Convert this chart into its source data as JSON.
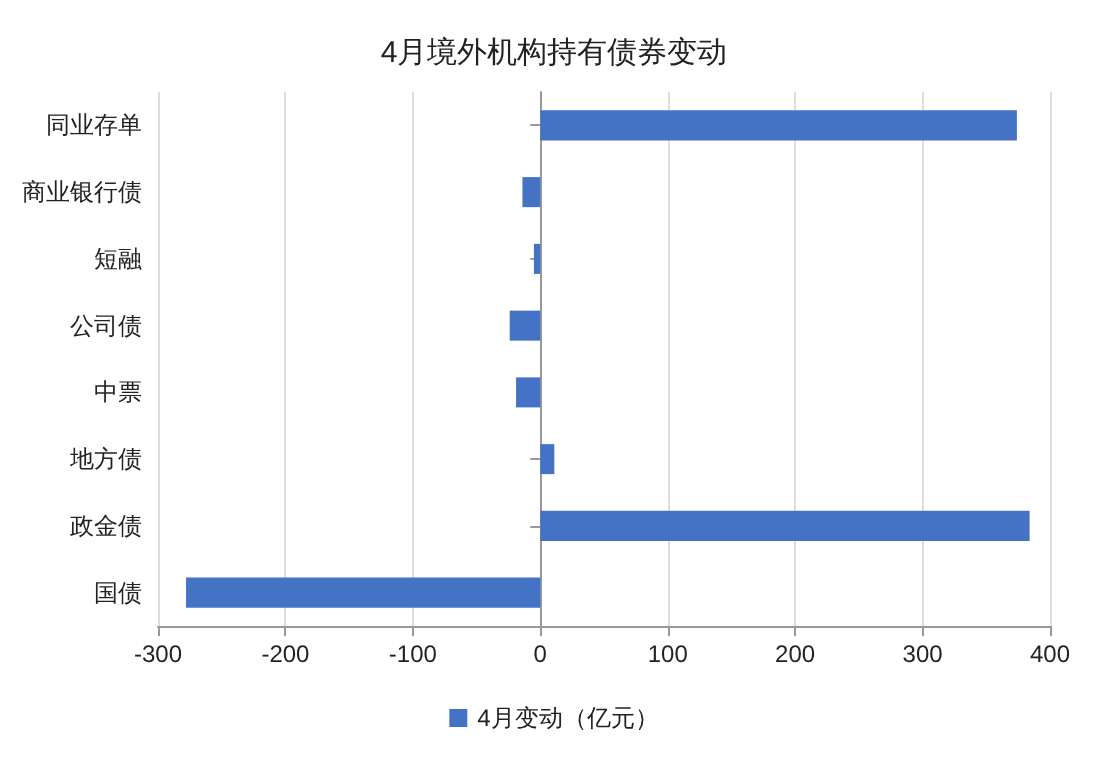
{
  "chart_data": {
    "type": "bar",
    "orientation": "horizontal",
    "title": "4月境外机构持有债券变动",
    "categories": [
      "同业存单",
      "商业银行债",
      "短融",
      "公司债",
      "中票",
      "地方债",
      "政金债",
      "国债"
    ],
    "series": [
      {
        "name": "4月变动（亿元）",
        "color": "#4472c4",
        "values": [
          374,
          -14,
          -5,
          -24,
          -19,
          11,
          384,
          -278
        ]
      }
    ],
    "xlim": [
      -300,
      400
    ],
    "xticks": [
      -300,
      -200,
      -100,
      0,
      100,
      200,
      300,
      400
    ],
    "grid": "x",
    "legend": "bottom"
  }
}
